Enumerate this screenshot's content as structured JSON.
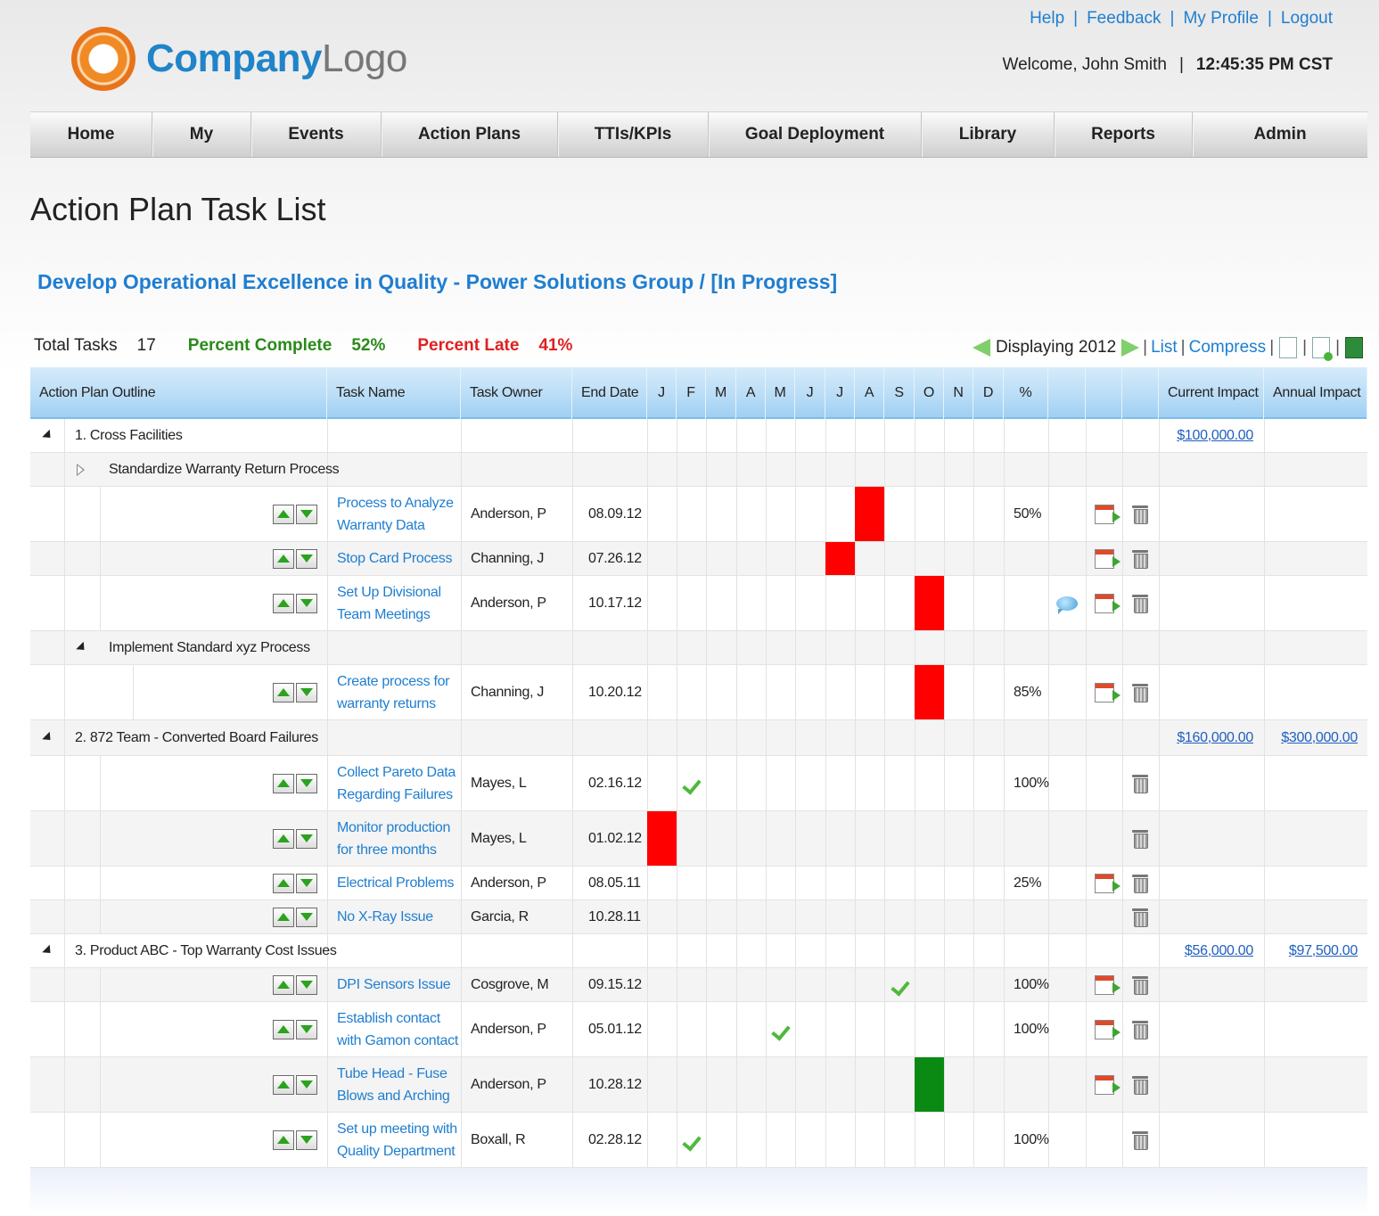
{
  "header": {
    "logo_company": "Company",
    "logo_suffix": "Logo",
    "links": [
      "Help",
      "Feedback",
      "My Profile",
      "Logout"
    ],
    "link_separator": "|",
    "welcome": "Welcome, John Smith",
    "separator": "|",
    "clock": "12:45:35 PM CST"
  },
  "nav": {
    "items": [
      "Home",
      "My",
      "Events",
      "Action Plans",
      "TTIs/KPIs",
      "Goal Deployment",
      "Library",
      "Reports",
      "Admin"
    ]
  },
  "page": {
    "title": "Action Plan Task List",
    "plan_title": "Develop Operational Excellence in Quality - Power Solutions Group / [In Progress]"
  },
  "stats": {
    "total_label": "Total Tasks",
    "total_value": "17",
    "complete_label": "Percent Complete",
    "complete_value": "52%",
    "late_label": "Percent Late",
    "late_value": "41%"
  },
  "viewbar": {
    "displaying": "Displaying 2012",
    "list": "List",
    "compress": "Compress",
    "sep": "|"
  },
  "grid": {
    "columns": {
      "outline": "Action Plan Outline",
      "task": "Task Name",
      "owner": "Task Owner",
      "end": "End Date",
      "months": [
        "J",
        "F",
        "M",
        "A",
        "M",
        "J",
        "J",
        "A",
        "S",
        "O",
        "N",
        "D"
      ],
      "pct": "%",
      "current": "Current Impact",
      "annual": "Annual Impact"
    },
    "groups": [
      {
        "label": "1. Cross Facilities",
        "current": "$100,000.00",
        "annual": ""
      },
      {
        "label": "2. 872 Team - Converted Board Failures",
        "current": "$160,000.00",
        "annual": "$300,000.00"
      },
      {
        "label": "3. Product ABC - Top Warranty Cost Issues",
        "current": "$56,000.00",
        "annual": "$97,500.00"
      }
    ],
    "subgroups": [
      {
        "label": "Standardize Warranty Return Process"
      },
      {
        "label": "Implement Standard xyz Process"
      }
    ],
    "tasks": [
      {
        "line1": "Process to Analyze",
        "line2": "Warranty Data",
        "owner": "Anderson, P",
        "end": "08.09.12",
        "pct": "50%"
      },
      {
        "line1": "Stop Card Process",
        "line2": "",
        "owner": "Channing, J",
        "end": "07.26.12",
        "pct": ""
      },
      {
        "line1": "Set Up Divisional",
        "line2": "Team Meetings",
        "owner": "Anderson, P",
        "end": "10.17.12",
        "pct": ""
      },
      {
        "line1": "Create process for",
        "line2": "warranty returns",
        "owner": "Channing, J",
        "end": "10.20.12",
        "pct": "85%"
      },
      {
        "line1": "Collect Pareto Data",
        "line2": "Regarding Failures",
        "owner": "Mayes, L",
        "end": "02.16.12",
        "pct": "100%"
      },
      {
        "line1": "Monitor production",
        "line2": "for three months",
        "owner": "Mayes, L",
        "end": "01.02.12",
        "pct": ""
      },
      {
        "line1": "Electrical Problems",
        "line2": "",
        "owner": "Anderson, P",
        "end": "08.05.11",
        "pct": "25%"
      },
      {
        "line1": "No X-Ray Issue",
        "line2": "",
        "owner": "Garcia, R",
        "end": "10.28.11",
        "pct": ""
      },
      {
        "line1": "DPI Sensors Issue",
        "line2": "",
        "owner": "Cosgrove, M",
        "end": "09.15.12",
        "pct": "100%"
      },
      {
        "line1": "Establish contact",
        "line2": "with Gamon contact",
        "owner": "Anderson, P",
        "end": "05.01.12",
        "pct": "100%"
      },
      {
        "line1": "Tube Head - Fuse",
        "line2": "Blows and Arching",
        "owner": "Anderson, P",
        "end": "10.28.12",
        "pct": ""
      },
      {
        "line1": "Set up meeting with",
        "line2": "Quality Department",
        "owner": "Boxall, R",
        "end": "02.28.12",
        "pct": "100%"
      }
    ]
  },
  "colors": {
    "link": "#1f7ed0",
    "late_bar": "#ff0000",
    "ontime_bar": "#0a8a12",
    "complete": "#2a8a1a",
    "late_text": "#e02020",
    "header_blue": "#b8dcf6"
  }
}
